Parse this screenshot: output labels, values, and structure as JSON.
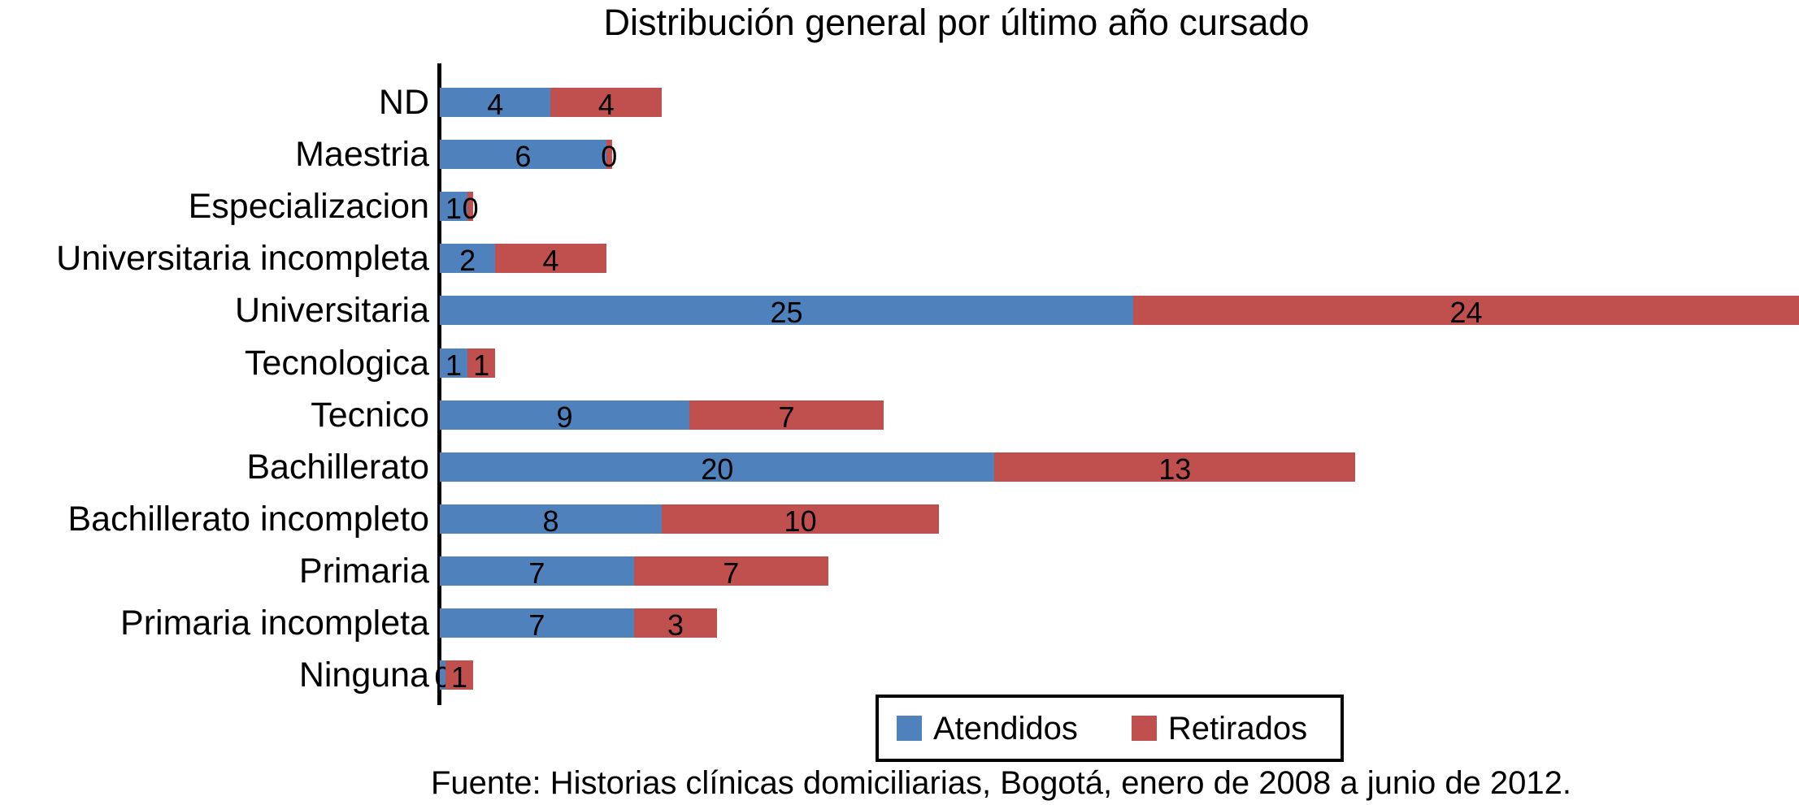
{
  "title": "Distribución general por último año cursado",
  "footer": "Fuente: Historias clínicas domiciliarias, Bogotá, enero de 2008 a junio de 2012.",
  "legend": {
    "atendidos_label": "Atendidos",
    "retirados_label": "Retirados"
  },
  "colors": {
    "atendidos": "#4F81BD",
    "retirados": "#C0504D",
    "axis": "#000000",
    "background": "#FFFFFF",
    "value_label": "#000000"
  },
  "chart_data": {
    "type": "bar",
    "orientation": "horizontal",
    "stacked": true,
    "title": "Distribución general por último año cursado",
    "xlabel": "",
    "ylabel": "",
    "grid": false,
    "xlim": [
      0,
      49
    ],
    "legend_position": "bottom-right",
    "categories": [
      "ND",
      "Maestria",
      "Especializacion",
      "Universitaria incompleta",
      "Universitaria",
      "Tecnologica",
      "Tecnico",
      "Bachillerato",
      "Bachillerato incompleto",
      "Primaria",
      "Primaria incompleta",
      "Ninguna"
    ],
    "series": [
      {
        "name": "Atendidos",
        "color": "#4F81BD",
        "values": [
          4,
          6,
          1,
          2,
          25,
          1,
          9,
          20,
          8,
          7,
          7,
          0
        ]
      },
      {
        "name": "Retirados",
        "color": "#C0504D",
        "values": [
          4,
          0,
          0,
          4,
          24,
          1,
          7,
          13,
          10,
          7,
          3,
          1
        ]
      }
    ],
    "value_labels_shown": true,
    "source_note": "Fuente: Historias clínicas domiciliarias, Bogotá, enero de 2008 a junio de 2012."
  }
}
